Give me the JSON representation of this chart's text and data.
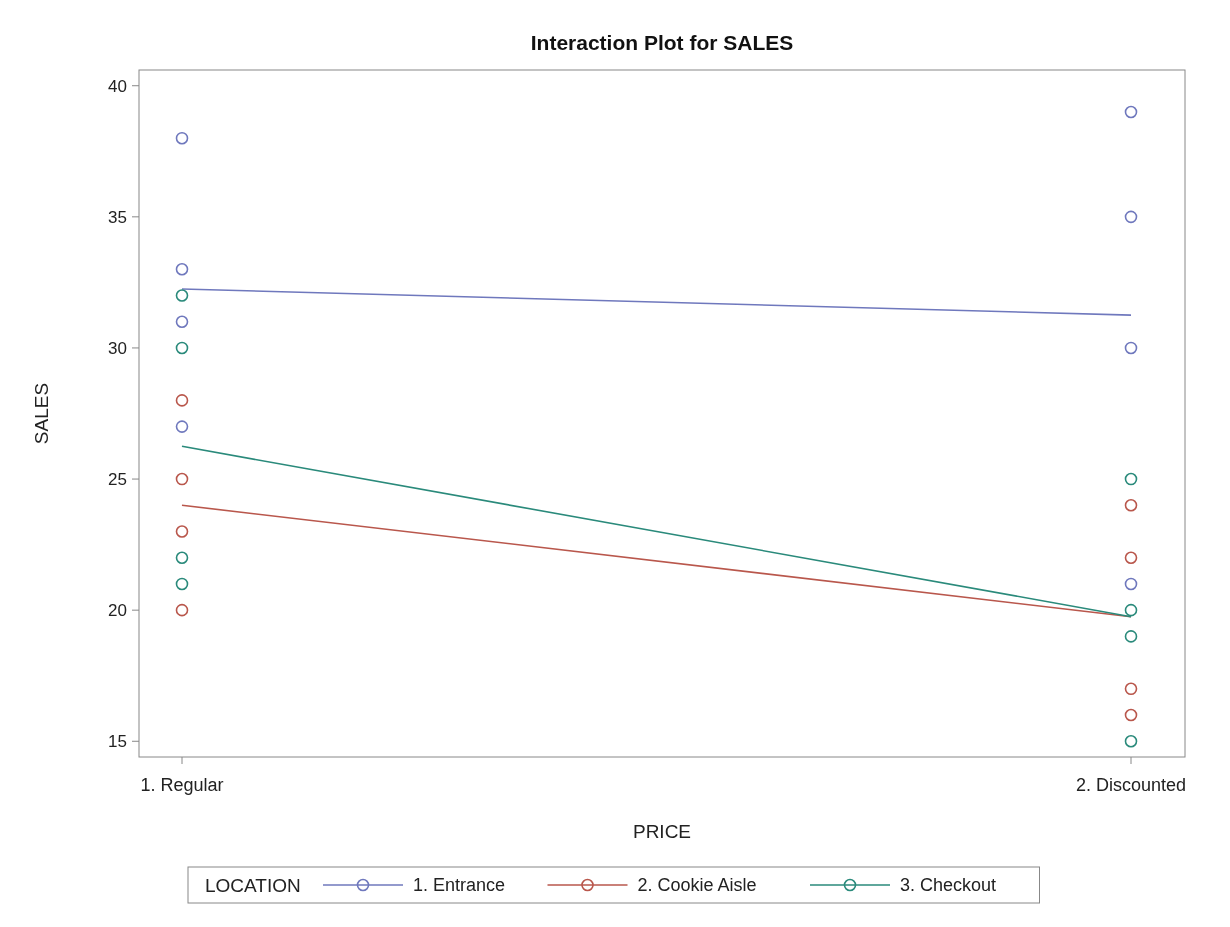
{
  "chart_data": {
    "type": "line",
    "title": "Interaction Plot for SALES",
    "xlabel": "PRICE",
    "ylabel": "SALES",
    "legend_title": "LOCATION",
    "categories": [
      "1. Regular",
      "2. Discounted"
    ],
    "series": [
      {
        "name": "1. Entrance",
        "color": "#6f78bd",
        "values": [
          32.25,
          31.25
        ],
        "marker": "none"
      },
      {
        "name": "2. Cookie Aisle",
        "color": "#b9574c",
        "values": [
          24,
          19.75
        ],
        "marker": "none"
      },
      {
        "name": "3. Checkout",
        "color": "#2a8a7b",
        "values": [
          26.25,
          19.75
        ],
        "marker": "none"
      },
      {
        "type": "scatter",
        "marker": "circle",
        "color": "#6f78bd",
        "x": [
          "1. Regular",
          "1. Regular",
          "1. Regular",
          "1. Regular",
          "2. Discounted",
          "2. Discounted",
          "2. Discounted",
          "2. Discounted"
        ],
        "values": [
          38,
          33,
          31,
          27,
          39,
          35,
          30,
          21
        ]
      },
      {
        "type": "scatter",
        "marker": "circle",
        "color": "#b9574c",
        "x": [
          "1. Regular",
          "1. Regular",
          "1. Regular",
          "1. Regular",
          "2. Discounted",
          "2. Discounted",
          "2. Discounted",
          "2. Discounted"
        ],
        "values": [
          28,
          25,
          23,
          20,
          24,
          22,
          17,
          16
        ]
      },
      {
        "type": "scatter",
        "marker": "circle",
        "color": "#2a8a7b",
        "x": [
          "1. Regular",
          "1. Regular",
          "1. Regular",
          "1. Regular",
          "2. Discounted",
          "2. Discounted",
          "2. Discounted",
          "2. Discounted"
        ],
        "values": [
          32,
          30,
          22,
          21,
          25,
          20,
          19,
          15
        ]
      }
    ],
    "ylim": [
      14.4,
      40.6
    ],
    "yticks": [
      15,
      20,
      25,
      30,
      35,
      40
    ],
    "grid": false,
    "legend": "bottom",
    "line_style": "solid"
  }
}
